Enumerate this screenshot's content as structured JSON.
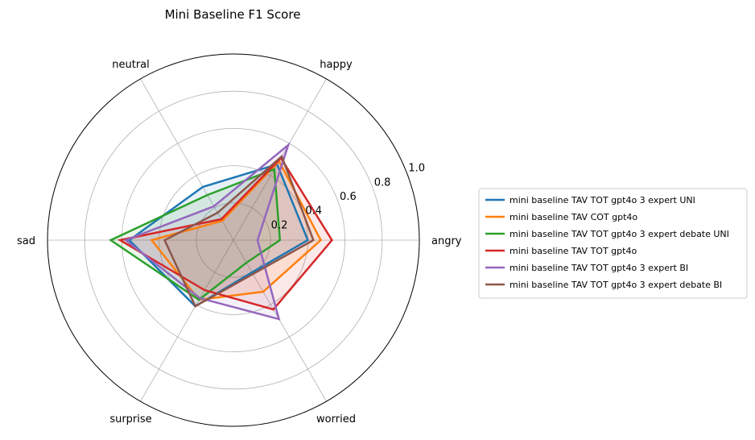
{
  "chart_data": {
    "type": "radar",
    "title": "Mini Baseline F1 Score",
    "categories": [
      "angry",
      "happy",
      "neutral",
      "sad",
      "surprise",
      "worried"
    ],
    "rlim": [
      0,
      1.0
    ],
    "rticks": [
      "0.2",
      "0.4",
      "0.6",
      "0.8",
      "1.0"
    ],
    "rtick_values": [
      0.2,
      0.4,
      0.6,
      0.8,
      1.0
    ],
    "grid": true,
    "legend_position": "right",
    "series": [
      {
        "name": "mini baseline TAV TOT gpt4o 3 expert UNI",
        "color": "#1f77b4",
        "values": [
          0.4,
          0.47,
          0.33,
          0.56,
          0.41,
          0.2
        ]
      },
      {
        "name": "mini baseline TAV COT gpt4o",
        "color": "#ff7f0e",
        "values": [
          0.47,
          0.49,
          0.12,
          0.44,
          0.37,
          0.32
        ]
      },
      {
        "name": "mini baseline TAV TOT gpt4o 3 expert debate UNI",
        "color": "#2ca02c",
        "values": [
          0.25,
          0.44,
          0.28,
          0.66,
          0.37,
          0.14
        ]
      },
      {
        "name": "mini baseline TAV TOT gpt4o",
        "color": "#d62728",
        "values": [
          0.53,
          0.51,
          0.13,
          0.61,
          0.31,
          0.43
        ]
      },
      {
        "name": "mini baseline TAV TOT gpt4o 3 expert BI",
        "color": "#9467bd",
        "values": [
          0.13,
          0.59,
          0.21,
          0.58,
          0.36,
          0.49
        ]
      },
      {
        "name": "mini baseline TAV TOT gpt4o 3 expert debate BI",
        "color": "#8c564b",
        "values": [
          0.43,
          0.52,
          0.17,
          0.37,
          0.41,
          0.21
        ]
      }
    ]
  }
}
